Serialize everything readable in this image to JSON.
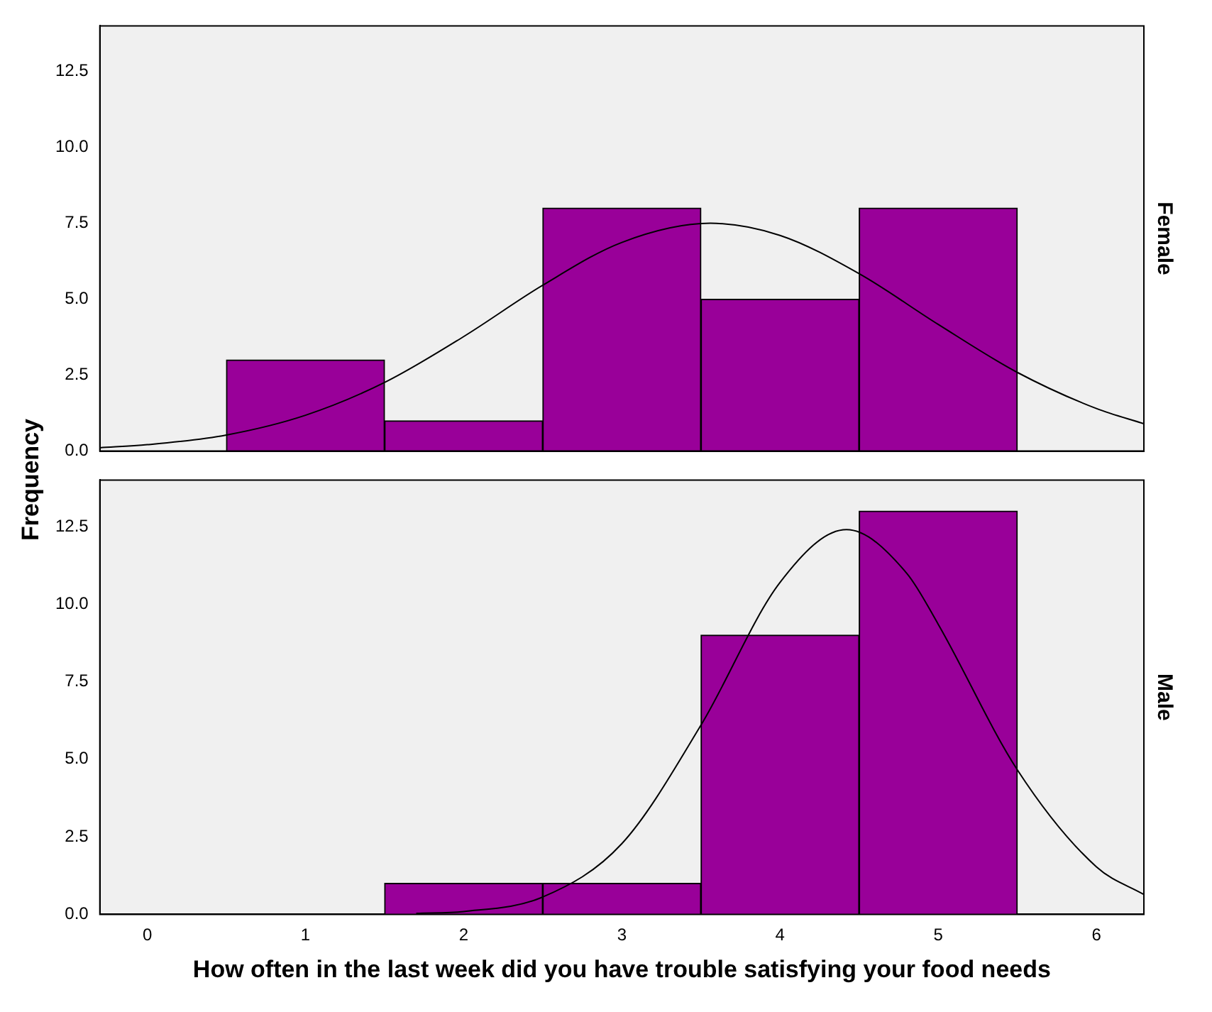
{
  "chart_data": [
    {
      "type": "histogram",
      "title": "Female",
      "ylabel": "Frequency",
      "bins": [
        0.5,
        1.5,
        2.5,
        3.5,
        4.5,
        5.5
      ],
      "values": [
        3,
        1,
        8,
        5,
        8
      ],
      "color": "#990099",
      "series": [
        {
          "type": "line",
          "color": "#000000",
          "x": [
            -0.3,
            0,
            0.5,
            1,
            1.5,
            2,
            2.5,
            3,
            3.56,
            4,
            4.5,
            5,
            5.5,
            6,
            6.3
          ],
          "values": [
            0.11,
            0.21,
            0.53,
            1.18,
            2.26,
            3.77,
            5.46,
            6.87,
            7.5,
            7.1,
            5.84,
            4.17,
            2.59,
            1.4,
            0.9
          ]
        }
      ],
      "xlim": [
        -0.3,
        6.3
      ],
      "xticks": [
        0,
        1,
        2,
        3,
        4,
        5,
        6
      ],
      "ylim": [
        0,
        14
      ],
      "yticks": [
        {
          "value": 0,
          "label": "0.0"
        },
        2.5,
        {
          "value": 5,
          "label": "5.0"
        },
        7.5,
        {
          "value": 10,
          "label": "10.0"
        },
        12.5
      ],
      "tick_labels": "y",
      "marker": "none",
      "grid": false,
      "legend": false
    },
    {
      "type": "histogram",
      "title": "Male",
      "xlabel": "How often in the last week did you have trouble satisfying your food needs",
      "bins": [
        1.5,
        2.5,
        3.5,
        4.5,
        5.5
      ],
      "values": [
        1,
        1,
        9,
        13
      ],
      "color": "#990099",
      "series": [
        {
          "type": "line",
          "color": "#000000",
          "x": [
            1.7,
            2,
            2.5,
            3,
            3.5,
            4,
            4.42,
            4.8,
            5,
            5.5,
            6,
            6.3
          ],
          "values": [
            0.03,
            0.09,
            0.56,
            2.28,
            6.1,
            10.7,
            12.4,
            11.0,
            9.35,
            4.66,
            1.53,
            0.64
          ]
        }
      ],
      "xlim": [
        -0.3,
        6.3
      ],
      "xticks": [
        0,
        1,
        2,
        3,
        4,
        5,
        6
      ],
      "ylim": [
        0,
        14
      ],
      "yticks": [
        {
          "value": 0,
          "label": "0.0"
        },
        2.5,
        {
          "value": 5,
          "label": "5.0"
        },
        7.5,
        {
          "value": 10,
          "label": "10.0"
        },
        12.5
      ],
      "marker": "none",
      "grid": false,
      "legend": false
    }
  ]
}
